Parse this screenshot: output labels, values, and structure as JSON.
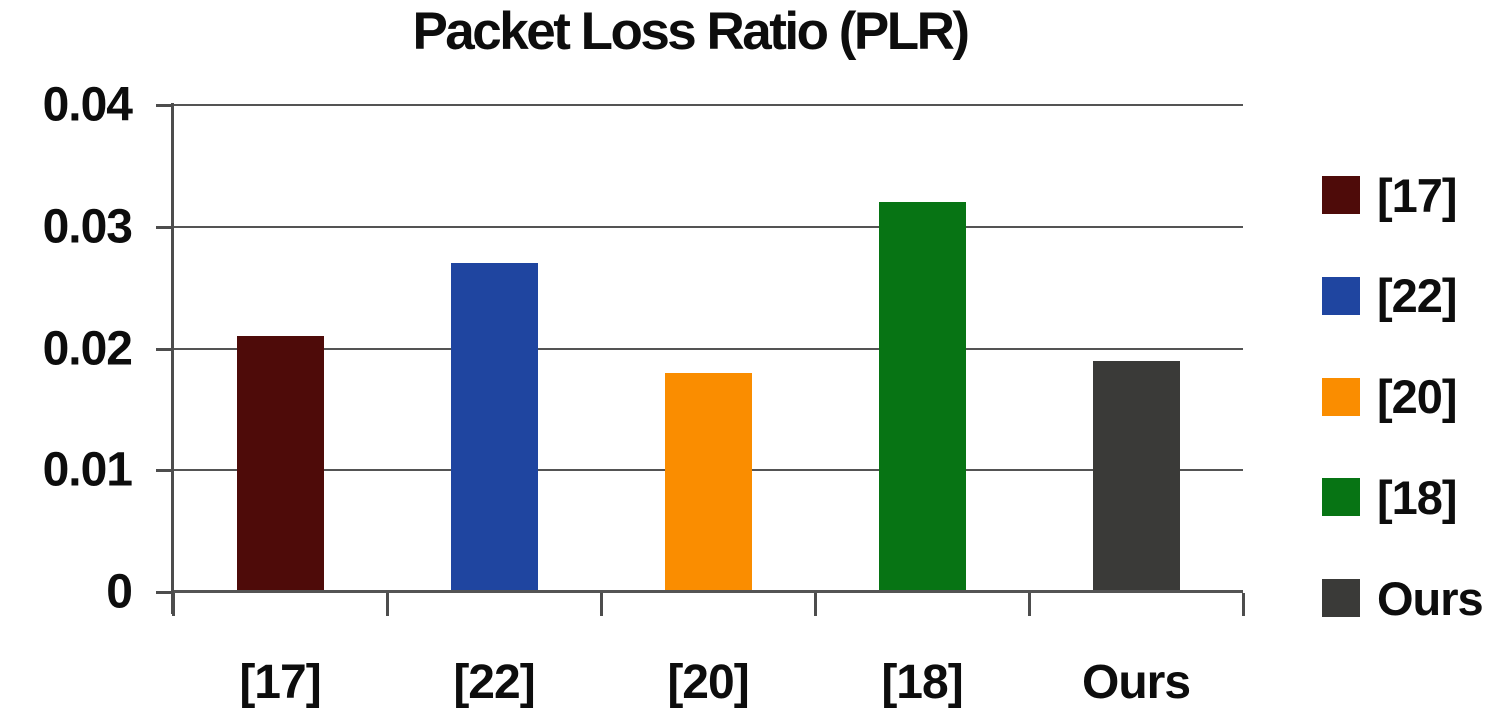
{
  "chart_data": {
    "type": "bar",
    "title": "Packet Loss Ratio (PLR)",
    "categories": [
      "[17]",
      "[22]",
      "[20]",
      "[18]",
      "Ours"
    ],
    "values": [
      0.021,
      0.027,
      0.018,
      0.032,
      0.019
    ],
    "bar_colors": [
      "#4E0B09",
      "#1F45A0",
      "#FA8D00",
      "#077414",
      "#3A3A38"
    ],
    "xlabel": "",
    "ylabel": "",
    "ylim": [
      0,
      0.04
    ],
    "ytick_values": [
      0,
      0.01,
      0.02,
      0.03,
      0.04
    ],
    "ytick_labels": [
      "0",
      "0.01",
      "0.02",
      "0.03",
      "0.04"
    ],
    "grid": "horizontal",
    "grid_color": "#545454",
    "text_color": "#0d0d0d",
    "legend": {
      "position": "right",
      "entries": [
        {
          "label": "[17]",
          "color": "#4E0B09"
        },
        {
          "label": "[22]",
          "color": "#1F45A0"
        },
        {
          "label": "[20]",
          "color": "#FA8D00"
        },
        {
          "label": "[18]",
          "color": "#077414"
        },
        {
          "label": "Ours",
          "color": "#3A3A38"
        }
      ]
    }
  }
}
